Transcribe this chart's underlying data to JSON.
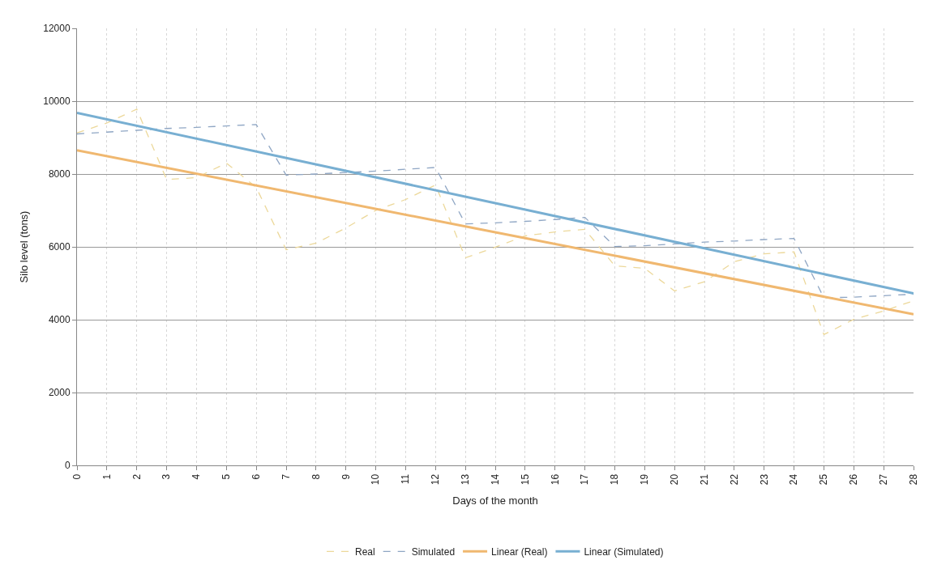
{
  "chart_data": {
    "type": "line",
    "xlabel": "Days of the month",
    "ylabel": "Silo level (tons)",
    "x": [
      0,
      1,
      2,
      3,
      4,
      5,
      6,
      7,
      8,
      9,
      10,
      11,
      12,
      13,
      14,
      15,
      16,
      17,
      18,
      19,
      20,
      21,
      22,
      23,
      24,
      25,
      26,
      27,
      28
    ],
    "series": [
      {
        "name": "Real",
        "color": "#ecd89a",
        "line_style": "dashed",
        "values": [
          9130,
          9400,
          9780,
          7850,
          7900,
          8300,
          7630,
          5920,
          6100,
          6520,
          7000,
          7300,
          7700,
          5700,
          5990,
          6300,
          6410,
          6480,
          5480,
          5410,
          4790,
          5040,
          5590,
          5810,
          5860,
          3590,
          4010,
          4240,
          4520
        ]
      },
      {
        "name": "Simulated",
        "color": "#8fa6c4",
        "line_style": "dashed",
        "values": [
          9100,
          9150,
          9200,
          9250,
          9280,
          9320,
          9360,
          7970,
          8000,
          8040,
          8080,
          8130,
          8180,
          6630,
          6660,
          6700,
          6750,
          6810,
          6010,
          6030,
          6080,
          6130,
          6160,
          6200,
          6230,
          4600,
          4620,
          4660,
          4700
        ]
      },
      {
        "name": "Linear (Real)",
        "color": "#f0b870",
        "line_style": "solid",
        "x": [
          0,
          14,
          28
        ],
        "values": [
          8650,
          6400,
          4150
        ]
      },
      {
        "name": "Linear (Simulated)",
        "color": "#78afd2",
        "line_style": "solid",
        "x": [
          0,
          14,
          28
        ],
        "values": [
          9680,
          7200,
          4720
        ]
      }
    ],
    "xlim": [
      0,
      28
    ],
    "xticks": [
      0,
      1,
      2,
      3,
      4,
      5,
      6,
      7,
      8,
      9,
      10,
      11,
      12,
      13,
      14,
      15,
      16,
      17,
      18,
      19,
      20,
      21,
      22,
      23,
      24,
      25,
      26,
      27,
      28
    ],
    "ylim": [
      0,
      12000
    ],
    "yticks": [
      0,
      2000,
      4000,
      6000,
      8000,
      10000,
      12000
    ],
    "grid": true,
    "legend": "bottom",
    "marker": "none"
  }
}
